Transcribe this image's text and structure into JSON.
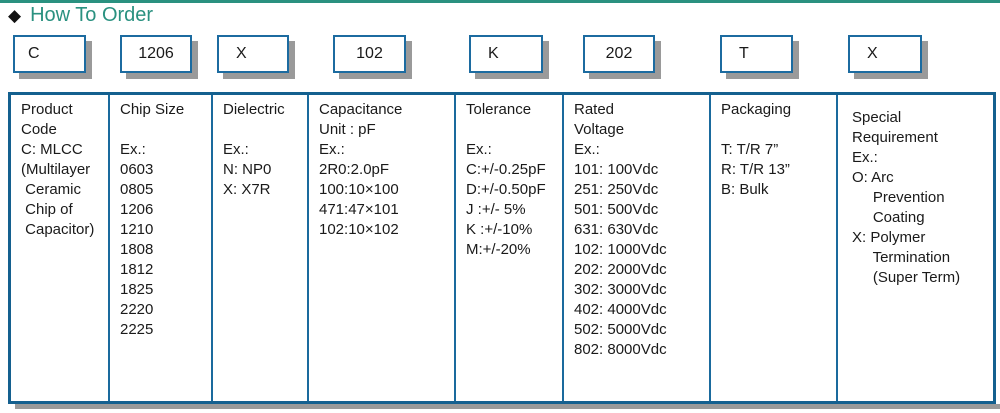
{
  "title_icon": "◆",
  "title": "How To Order",
  "colors": {
    "accent_teal": "#2a9180",
    "border_blue": "#1c6ba0",
    "table_border_blue": "#14608f",
    "shadow_gray": "#9a9a9a",
    "text": "#1a1a1a"
  },
  "codes": [
    "C",
    "1206",
    "X",
    "102",
    "K",
    "202",
    "T",
    "X"
  ],
  "columns": [
    {
      "id": "product-code",
      "lines": [
        "Product",
        "Code",
        "C: MLCC",
        "(Multilayer",
        " Ceramic",
        " Chip of",
        " Capacitor)"
      ]
    },
    {
      "id": "chip-size",
      "lines": [
        "Chip Size",
        "",
        "Ex.:",
        "0603",
        "0805",
        "1206",
        "1210",
        "1808",
        "1812",
        "1825",
        "2220",
        "2225"
      ]
    },
    {
      "id": "dielectric",
      "lines": [
        "Dielectric",
        "",
        "Ex.:",
        "N: NP0",
        "X: X7R"
      ]
    },
    {
      "id": "capacitance",
      "lines": [
        "Capacitance",
        "Unit : pF",
        "Ex.:",
        "2R0:2.0pF",
        "100:10×100",
        "471:47×101",
        "102:10×102"
      ]
    },
    {
      "id": "tolerance",
      "lines": [
        "Tolerance",
        "",
        "Ex.:",
        "C:+/-0.25pF",
        "D:+/-0.50pF",
        "J :+/- 5%",
        "K :+/-10%",
        "M:+/-20%"
      ]
    },
    {
      "id": "rated-voltage",
      "lines": [
        "Rated",
        "Voltage",
        "Ex.:",
        "101: 100Vdc",
        "251: 250Vdc",
        "501: 500Vdc",
        "631: 630Vdc",
        "102: 1000Vdc",
        "202: 2000Vdc",
        "302: 3000Vdc",
        "402: 4000Vdc",
        "502: 5000Vdc",
        "802: 8000Vdc"
      ]
    },
    {
      "id": "packaging",
      "lines": [
        "Packaging",
        "",
        "T: T/R 7”",
        "R: T/R 13”",
        "B: Bulk"
      ]
    },
    {
      "id": "special-requirement",
      "lines": [
        "Special",
        "Requirement",
        "Ex.:",
        "O: Arc",
        "     Prevention",
        "     Coating",
        "X: Polymer",
        "     Termination",
        "     (Super Term)"
      ]
    }
  ]
}
